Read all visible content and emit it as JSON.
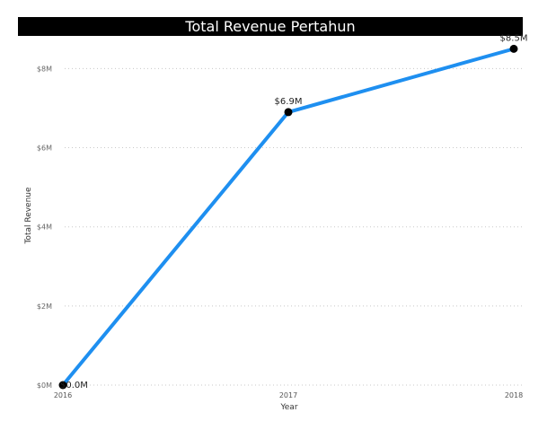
{
  "chart_data": {
    "type": "line",
    "title": "Total Revenue Pertahun",
    "xlabel": "Year",
    "ylabel": "Total Revenue",
    "x": [
      "2016",
      "2017",
      "2018"
    ],
    "values": [
      0.0,
      6.9,
      8.5
    ],
    "data_labels": [
      "$0.0M",
      "$6.9M",
      "$8.5M"
    ],
    "y_ticks": [
      0,
      2,
      4,
      6,
      8
    ],
    "y_tick_labels": [
      "$0M",
      "$2M",
      "$4M",
      "$6M",
      "$8M"
    ],
    "ylim": [
      0,
      8.1
    ],
    "grid": true,
    "line_color": "#1E8FF0",
    "marker_color": "#000000",
    "gridline_color": "#c8c8c8"
  }
}
